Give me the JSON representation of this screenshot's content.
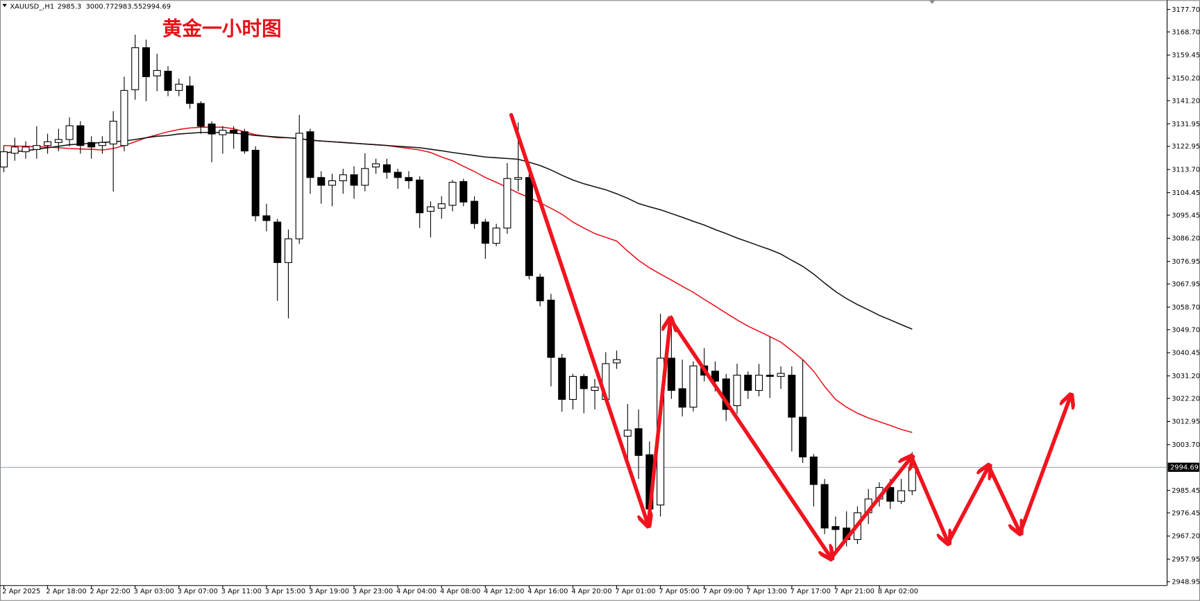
{
  "chart_data": {
    "type": "candlestick",
    "symbol": "XAUUSD_,H1",
    "title": "黄金一小时图",
    "categories": [
      "2 Apr 2025",
      null,
      null,
      null,
      "2 Apr 18:00",
      null,
      null,
      null,
      "2 Apr 22:00",
      null,
      null,
      null,
      "3 Apr 03:00",
      null,
      null,
      null,
      "3 Apr 07:00",
      null,
      null,
      null,
      "3 Apr 11:00",
      null,
      null,
      null,
      "3 Apr 15:00",
      null,
      null,
      null,
      "3 Apr 19:00",
      null,
      null,
      null,
      "3 Apr 23:00",
      null,
      null,
      null,
      "4 Apr 04:00",
      null,
      null,
      null,
      "4 Apr 08:00",
      null,
      null,
      null,
      "4 Apr 12:00",
      null,
      null,
      null,
      "4 Apr 16:00",
      null,
      null,
      null,
      "4 Apr 20:00",
      null,
      null,
      null,
      "7 Apr 01:00",
      null,
      null,
      null,
      "7 Apr 05:00",
      null,
      null,
      null,
      "7 Apr 09:00",
      null,
      null,
      null,
      "7 Apr 13:00",
      null,
      null,
      null,
      "7 Apr 17:00",
      null,
      null,
      null,
      "7 Apr 21:00",
      null,
      null,
      null,
      "8 Apr 02:00",
      null,
      null,
      null
    ],
    "open": [
      3114.7,
      3120.2,
      3120.8,
      3121.7,
      3123.3,
      3124.5,
      3125.7,
      3131.2,
      3124.5,
      3123.3,
      3123.9,
      3123.3,
      3145.6,
      3162.4,
      3151.1,
      3153,
      3145.3,
      3147.1,
      3140.1,
      3131.9,
      3127.6,
      3129.4,
      3128.8,
      3121.4,
      3095.2,
      3092.7,
      3076.5,
      3086,
      3128.8,
      3110.5,
      3107.4,
      3109.2,
      3111.6,
      3107.4,
      3114.7,
      3115.6,
      3112.6,
      3110.5,
      3109.5,
      3097,
      3098.2,
      3099.4,
      3108.9,
      3101,
      3092.7,
      3084.2,
      3090.3,
      3109.8,
      3110.5,
      3070.7,
      3061.5,
      3038.3,
      3021.8,
      3031,
      3025.4,
      3021.8,
      3036.4,
      3007.1,
      3010.1,
      2999.7,
      2979.6,
      3038.3,
      3026.1,
      3018.7,
      3035.2,
      3033.1,
      3030,
      3019.3,
      3031.5,
      3025.4,
      3031.5,
      3031,
      3031.5,
      3014.7,
      2998.8,
      2987.8,
      2971,
      2970.4,
      2965.8,
      2976.5,
      2982,
      2986.6,
      2981.1,
      2985.3
    ],
    "high": [
      3123.3,
      3126.4,
      3125,
      3131,
      3128,
      3130,
      3134.5,
      3133,
      3127,
      3127,
      3137,
      3150.8,
      3167.6,
      3165.6,
      3160,
      3155,
      3150,
      3151,
      3141,
      3133,
      3131,
      3131,
      3130,
      3123,
      3100,
      3094,
      3089.7,
      3135.5,
      3130,
      3113,
      3112,
      3114,
      3115,
      3120.2,
      3118,
      3118,
      3114,
      3113,
      3111,
      3101,
      3103,
      3109.5,
      3110,
      3103,
      3094,
      3092,
      3116.3,
      3132.5,
      3112,
      3072,
      3064,
      3040,
      3032,
      3032,
      3030,
      3040.7,
      3041.3,
      3020,
      3017.8,
      3005,
      3056,
      3055.4,
      3037.7,
      3037,
      3042.3,
      3037,
      3032,
      3036.1,
      3033,
      3036,
      3046.8,
      3035,
      3035,
      3037.7,
      3000,
      2990,
      2975,
      2977.1,
      2979,
      2986,
      2988.7,
      2990,
      2990,
      3000.77
    ],
    "low": [
      3112.6,
      3117.2,
      3118,
      3118,
      3120,
      3121,
      3123,
      3120,
      3118,
      3120,
      3104.9,
      3121,
      3141.6,
      3141,
      3145,
      3143,
      3143,
      3138,
      3128,
      3116.6,
      3120,
      3122,
      3120,
      3093,
      3089,
      3061.2,
      3054.2,
      3084,
      3104,
      3100,
      3099,
      3104,
      3102,
      3105,
      3112,
      3110,
      3106,
      3106,
      3090.3,
      3086.6,
      3094,
      3097,
      3099,
      3090,
      3078,
      3083,
      3088,
      3105,
      3069.8,
      3059,
      3027,
      3016.9,
      3017.8,
      3016.3,
      3017.8,
      3020.8,
      3034,
      2994.9,
      2990,
      2970.4,
      2975,
      3022,
      3015,
      3017,
      3029,
      3025,
      3013.2,
      3016,
      3022,
      3023,
      3022.4,
      3026,
      3001,
      2996.4,
      2979,
      2968,
      2961.2,
      2963,
      2964,
      2972,
      2979,
      2978,
      2980,
      2983.55
    ],
    "close": [
      3120.8,
      3122.7,
      3122.7,
      3123.3,
      3124.8,
      3125.7,
      3131.2,
      3123.3,
      3122.7,
      3124.5,
      3133,
      3145.3,
      3162.4,
      3150.8,
      3153.3,
      3145.3,
      3147.8,
      3140.1,
      3131,
      3127.9,
      3129.4,
      3128.2,
      3121.1,
      3095.2,
      3093.3,
      3076.5,
      3086,
      3128.2,
      3110.5,
      3107.4,
      3109.2,
      3111.6,
      3107.4,
      3114.1,
      3116,
      3112.6,
      3110.5,
      3109.2,
      3096.4,
      3098.8,
      3100,
      3108.6,
      3100.7,
      3092.1,
      3084.2,
      3090.3,
      3110.1,
      3110.5,
      3071.3,
      3061.2,
      3038.6,
      3021.8,
      3031,
      3026.1,
      3026.7,
      3036.1,
      3037.7,
      3009.5,
      2999.4,
      2978,
      3038.3,
      3025.4,
      3018.7,
      3035.2,
      3031.5,
      3029.1,
      3017.8,
      3031.5,
      3025.4,
      3031.5,
      3031,
      3032.2,
      3014.7,
      2998.8,
      2987.8,
      2970.4,
      2969.8,
      2965.8,
      2976.5,
      2982,
      2986.6,
      2981.1,
      2985.3,
      2994.69
    ],
    "lines": [
      {
        "color": "#e8111a",
        "values": [
          3123.3,
          3123.1,
          3123.0,
          3122.8,
          3122.7,
          3122.4,
          3122.1,
          3121.9,
          3121.8,
          3121.5,
          3122.1,
          3123.3,
          3124.8,
          3126.4,
          3127.6,
          3128.8,
          3129.7,
          3130.3,
          3130.6,
          3130.6,
          3130.6,
          3130.0,
          3128.8,
          3127.6,
          3127.0,
          3126.4,
          3126.4,
          3126.1,
          3125.4,
          3125.1,
          3124.8,
          3124.5,
          3124.2,
          3123.9,
          3123.6,
          3123.3,
          3122.7,
          3122.1,
          3121.5,
          3120.5,
          3118.7,
          3117.2,
          3115.0,
          3112.9,
          3110.5,
          3108.6,
          3106.5,
          3104.3,
          3102.5,
          3100.4,
          3098.2,
          3095.8,
          3092.7,
          3090.3,
          3088.1,
          3086.6,
          3085.1,
          3081.1,
          3077.4,
          3074.4,
          3071.9,
          3069.5,
          3067.0,
          3064.6,
          3061.8,
          3059.1,
          3056.3,
          3053.6,
          3051.1,
          3049.0,
          3046.9,
          3044.7,
          3041.3,
          3037.7,
          3033.1,
          3027.0,
          3021.8,
          3018.7,
          3016.3,
          3014.4,
          3012.9,
          3011.4,
          3009.8,
          3008.6
        ]
      },
      {
        "color": "#111111",
        "values": [
          3120.2,
          3120.9,
          3121.2,
          3121.8,
          3122.4,
          3123.0,
          3123.6,
          3123.9,
          3124.2,
          3124.5,
          3124.8,
          3125.1,
          3125.7,
          3126.4,
          3127.0,
          3127.3,
          3127.9,
          3128.2,
          3128.5,
          3128.5,
          3128.5,
          3128.2,
          3127.9,
          3127.3,
          3127.0,
          3126.7,
          3126.4,
          3126.1,
          3125.4,
          3125.1,
          3124.8,
          3124.5,
          3124.2,
          3123.9,
          3123.6,
          3123.3,
          3123.0,
          3122.7,
          3122.4,
          3121.8,
          3121.2,
          3120.5,
          3119.9,
          3119.3,
          3118.7,
          3118.4,
          3118.1,
          3117.8,
          3116.6,
          3115.3,
          3113.5,
          3111.4,
          3109.5,
          3108.0,
          3106.8,
          3105.6,
          3104.0,
          3102.2,
          3100.1,
          3098.8,
          3097.6,
          3096.1,
          3094.6,
          3093.0,
          3091.5,
          3089.7,
          3088.1,
          3086.3,
          3084.8,
          3083.2,
          3081.7,
          3079.9,
          3077.4,
          3075.0,
          3071.9,
          3068.3,
          3064.9,
          3062.1,
          3059.7,
          3057.6,
          3055.4,
          3053.6,
          3051.7,
          3049.9
        ]
      }
    ],
    "ylim": [
      2947.4,
      3181.4
    ],
    "yticks": [
      {
        "value": 3177.7,
        "label": "3177.70"
      },
      {
        "value": 3168.7,
        "label": "3168.70"
      },
      3159.45,
      {
        "value": 3150.2,
        "label": "3150.20"
      },
      {
        "value": 3141.2,
        "label": "3141.20"
      },
      3131.95,
      3122.95,
      {
        "value": 3113.7,
        "label": "3113.70"
      },
      3104.45,
      3095.45,
      {
        "value": 3086.2,
        "label": "3086.20"
      },
      3076.95,
      3067.95,
      {
        "value": 3058.7,
        "label": "3058.70"
      },
      {
        "value": 3049.7,
        "label": "3049.70"
      },
      3040.45,
      {
        "value": 3031.2,
        "label": "3031.20"
      },
      {
        "value": 3022.2,
        "label": "3022.20"
      },
      3012.95,
      {
        "value": 3003.7,
        "label": "3003.70"
      },
      2985.45,
      2976.45,
      {
        "value": 2967.2,
        "label": "2967.20"
      },
      2957.95,
      2948.95
    ],
    "last_price": 2994.69,
    "up_color": "#ffffff",
    "down_color": "#000000"
  }
}
